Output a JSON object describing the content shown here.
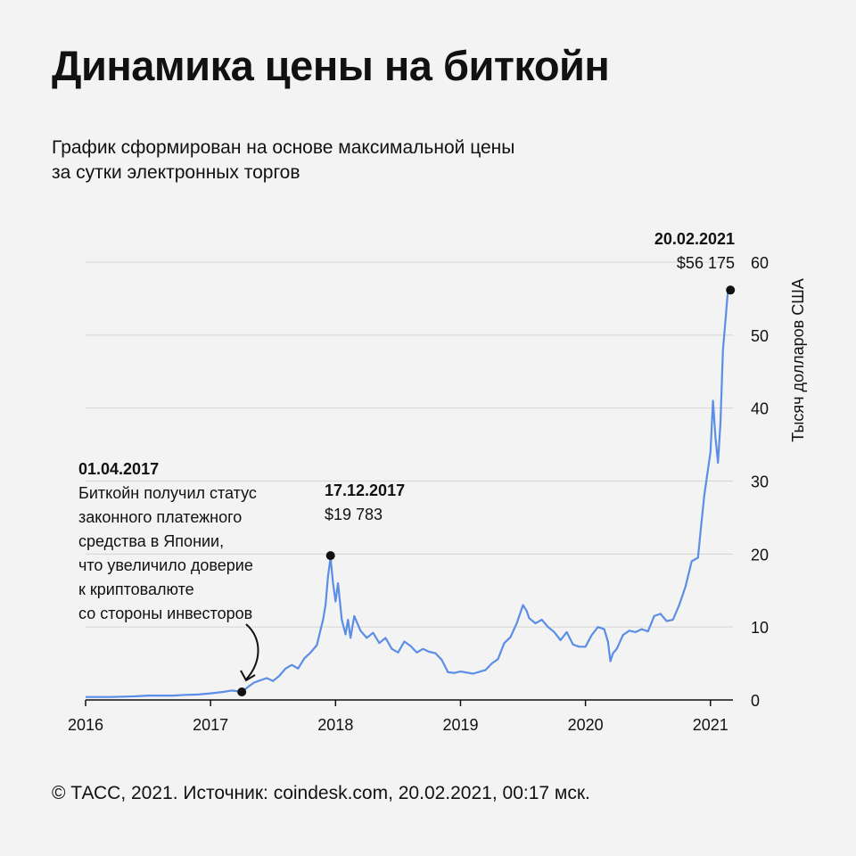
{
  "title": "Динамика цены на биткойн",
  "subtitle_lines": [
    "График сформирован на основе максимальной цены",
    "за сутки электронных торгов"
  ],
  "source": "© ТАСС, 2021. Источник: coindesk.com, 20.02.2021, 00:17 мск.",
  "chart_data": {
    "type": "line",
    "ylabel": "Тысяч долларов США",
    "ylim": [
      0,
      60
    ],
    "yticks": [
      0,
      10,
      20,
      30,
      40,
      50,
      60
    ],
    "xticks": [
      "2016",
      "2017",
      "2018",
      "2019",
      "2020",
      "2021"
    ],
    "xlim": [
      2016.0,
      2021.18
    ],
    "line_color": "#5b8ee6",
    "grid": true,
    "series": [
      {
        "x": [
          2016.0,
          2016.1,
          2016.2,
          2016.3,
          2016.4,
          2016.5,
          2016.6,
          2016.7,
          2016.8,
          2016.9,
          2017.0,
          2017.1,
          2017.17,
          2017.25,
          2017.3,
          2017.35,
          2017.4,
          2017.45,
          2017.5,
          2017.55,
          2017.6,
          2017.65,
          2017.7,
          2017.75,
          2017.8,
          2017.85,
          2017.9,
          2017.92,
          2017.94,
          2017.96,
          2017.98,
          2018.0,
          2018.02,
          2018.05,
          2018.08,
          2018.1,
          2018.12,
          2018.15,
          2018.2,
          2018.25,
          2018.3,
          2018.35,
          2018.4,
          2018.45,
          2018.5,
          2018.55,
          2018.6,
          2018.65,
          2018.7,
          2018.75,
          2018.8,
          2018.85,
          2018.88,
          2018.9,
          2018.95,
          2019.0,
          2019.1,
          2019.2,
          2019.25,
          2019.3,
          2019.35,
          2019.4,
          2019.45,
          2019.5,
          2019.53,
          2019.55,
          2019.6,
          2019.65,
          2019.7,
          2019.75,
          2019.8,
          2019.85,
          2019.9,
          2019.95,
          2020.0,
          2020.05,
          2020.1,
          2020.15,
          2020.18,
          2020.2,
          2020.22,
          2020.25,
          2020.3,
          2020.35,
          2020.4,
          2020.45,
          2020.5,
          2020.55,
          2020.6,
          2020.65,
          2020.7,
          2020.75,
          2020.8,
          2020.85,
          2020.9,
          2020.92,
          2020.95,
          2021.0,
          2021.02,
          2021.04,
          2021.06,
          2021.08,
          2021.1,
          2021.12,
          2021.14
        ],
        "y": [
          0.4,
          0.4,
          0.4,
          0.45,
          0.5,
          0.6,
          0.6,
          0.6,
          0.7,
          0.75,
          0.9,
          1.1,
          1.3,
          1.1,
          1.8,
          2.4,
          2.7,
          3.0,
          2.6,
          3.3,
          4.3,
          4.8,
          4.3,
          5.7,
          6.5,
          7.5,
          11.0,
          13.0,
          17.0,
          19.5,
          16.0,
          13.5,
          16.0,
          11.0,
          9.0,
          11.0,
          8.5,
          11.5,
          9.5,
          8.5,
          9.2,
          7.8,
          8.5,
          7.0,
          6.5,
          8.0,
          7.4,
          6.5,
          7.0,
          6.6,
          6.4,
          5.5,
          4.5,
          3.8,
          3.7,
          3.9,
          3.6,
          4.1,
          5.0,
          5.6,
          7.8,
          8.6,
          10.5,
          13.0,
          12.2,
          11.2,
          10.5,
          11.0,
          10.0,
          9.3,
          8.2,
          9.3,
          7.6,
          7.3,
          7.3,
          8.9,
          10.0,
          9.7,
          8.0,
          5.3,
          6.4,
          7.0,
          8.9,
          9.5,
          9.3,
          9.7,
          9.4,
          11.5,
          11.8,
          10.8,
          11.0,
          13.0,
          15.5,
          19.0,
          19.5,
          23.0,
          28.0,
          34.0,
          41.0,
          36.0,
          32.5,
          38.0,
          48.0,
          52.0,
          56.2
        ]
      }
    ]
  },
  "annotations": {
    "peak2021": {
      "date": "20.02.2021",
      "value": "$56 175"
    },
    "peak2017": {
      "date": "17.12.2017",
      "value": "$19 783"
    },
    "japan": {
      "date": "01.04.2017",
      "lines": [
        "Биткойн получил статус",
        "законного платежного",
        "средства в Японии,",
        "что увеличило доверие",
        "к криптовалюте",
        "со стороны инвесторов"
      ]
    }
  }
}
